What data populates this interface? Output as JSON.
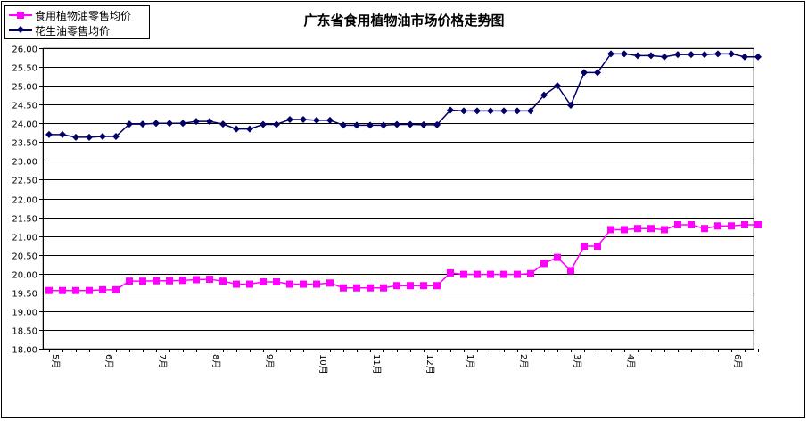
{
  "chart_data": {
    "type": "line",
    "title": "广东省食用植物油市场价格走势图",
    "xlabel": "",
    "ylabel": "",
    "ylim": [
      18.0,
      26.0
    ],
    "ytick_step": 0.5,
    "grid": "horizontal",
    "legend_position": "top-left",
    "x_tick_labels": [
      "5月",
      "6月",
      "7月",
      "8月",
      "9月",
      "10月",
      "11月",
      "12月",
      "1月",
      "2月",
      "3月",
      "4月",
      "6月"
    ],
    "x_tick_label_index": [
      0,
      4,
      8,
      12,
      16,
      20,
      24,
      28,
      31,
      35,
      39,
      43,
      51
    ],
    "series": [
      {
        "name": "食用植物油零售均价",
        "color": "#ff00ff",
        "marker": "square",
        "values": [
          19.55,
          19.55,
          19.55,
          19.55,
          19.57,
          19.57,
          19.8,
          19.8,
          19.81,
          19.81,
          19.82,
          19.84,
          19.85,
          19.8,
          19.72,
          19.72,
          19.78,
          19.78,
          19.72,
          19.72,
          19.72,
          19.75,
          19.62,
          19.62,
          19.62,
          19.62,
          19.68,
          19.68,
          19.68,
          19.68,
          20.02,
          19.98,
          19.98,
          19.98,
          19.98,
          19.98,
          20.0,
          20.27,
          20.43,
          20.08,
          20.73,
          20.73,
          21.17,
          21.17,
          21.2,
          21.2,
          21.17,
          21.3,
          21.3,
          21.2,
          21.27,
          21.27,
          21.3,
          21.3
        ]
      },
      {
        "name": "花生油零售均价",
        "color": "#000066",
        "marker": "diamond",
        "values": [
          23.7,
          23.7,
          23.63,
          23.63,
          23.65,
          23.65,
          23.98,
          23.98,
          24.0,
          24.0,
          24.0,
          24.05,
          24.05,
          23.98,
          23.85,
          23.85,
          23.97,
          23.97,
          24.1,
          24.1,
          24.08,
          24.08,
          23.95,
          23.95,
          23.95,
          23.95,
          23.97,
          23.97,
          23.96,
          23.96,
          24.35,
          24.33,
          24.33,
          24.33,
          24.33,
          24.33,
          24.33,
          24.75,
          25.0,
          24.48,
          25.35,
          25.35,
          25.85,
          25.85,
          25.8,
          25.8,
          25.77,
          25.83,
          25.83,
          25.83,
          25.85,
          25.85,
          25.77,
          25.77
        ]
      }
    ]
  }
}
